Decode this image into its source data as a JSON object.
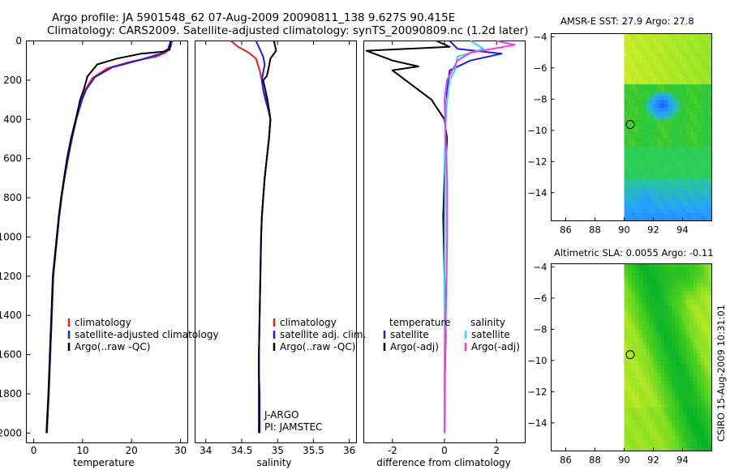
{
  "figure": {
    "title_line1": "Argo profile: JA 5901548_62 07-Aug-2009 20090811_138 9.627S 90.415E",
    "title_line2": "Climatology: CARS2009. Satellite-adjusted climatology: synTS_20090809.nc (1.2d later)",
    "side_label": "CSIRO 15-Aug-2009 10:31:01"
  },
  "colors": {
    "climatology": "#ff1a1a",
    "satellite": "#1a1aff",
    "argo": "#000000",
    "salinity_satellite": "#22e0ee",
    "salinity_argo": "#ff33ee"
  },
  "chart_data": [
    {
      "type": "line",
      "id": "temperature",
      "xlabel": "temperature",
      "xlim": [
        -1.5,
        31.5
      ],
      "ylim": [
        2050,
        0
      ],
      "y_inverted": true,
      "xticks": [
        0,
        10,
        20,
        30
      ],
      "yticks": [
        0,
        200,
        400,
        600,
        800,
        1000,
        1200,
        1400,
        1600,
        1800,
        2000
      ],
      "legend": [
        "climatology",
        "satellite-adjusted climatology",
        "Argo(..raw -QC)"
      ],
      "series": [
        {
          "name": "climatology",
          "color": "#ff1a1a",
          "x": [
            28.3,
            28.0,
            27.0,
            25.0,
            20.0,
            15.0,
            12.0,
            10.5,
            9.8,
            8.7,
            7.8,
            7.0,
            6.3,
            5.7,
            5.2,
            4.8,
            4.4,
            4.0,
            3.7,
            3.4,
            3.1,
            2.9,
            2.7
          ],
          "y": [
            0,
            30,
            60,
            80,
            105,
            140,
            190,
            250,
            300,
            400,
            500,
            600,
            700,
            800,
            900,
            1000,
            1100,
            1200,
            1400,
            1600,
            1800,
            1900,
            2000
          ]
        },
        {
          "name": "satellite-adjusted climatology",
          "color": "#1a1aff",
          "x": [
            28.0,
            27.5,
            26.0,
            22.0,
            16.0,
            12.5,
            10.8,
            9.9,
            8.7,
            7.8,
            7.0,
            6.3,
            5.7,
            5.2,
            4.8,
            4.4,
            4.0,
            3.7,
            3.4,
            3.1,
            2.9,
            2.7
          ],
          "y": [
            0,
            40,
            65,
            95,
            135,
            185,
            245,
            300,
            400,
            500,
            600,
            700,
            800,
            900,
            1000,
            1100,
            1200,
            1400,
            1600,
            1800,
            1900,
            2000
          ]
        },
        {
          "name": "Argo(..raw -QC)",
          "color": "#000000",
          "x": [
            28.0,
            27.8,
            26.5,
            22.0,
            17.0,
            13.0,
            11.0,
            10.2,
            9.5,
            8.6,
            7.6,
            6.8,
            6.2,
            5.6,
            5.1,
            4.7,
            4.3,
            3.9,
            3.6,
            3.3,
            3.0,
            2.8,
            2.6
          ],
          "y": [
            0,
            45,
            55,
            65,
            90,
            120,
            180,
            250,
            300,
            400,
            500,
            600,
            700,
            800,
            900,
            1000,
            1100,
            1200,
            1400,
            1600,
            1800,
            1900,
            2000
          ]
        }
      ]
    },
    {
      "type": "line",
      "id": "salinity",
      "xlabel": "salinity",
      "xlim": [
        33.85,
        36.1
      ],
      "ylim": [
        2050,
        0
      ],
      "y_inverted": true,
      "xticks": [
        34,
        34.5,
        35,
        35.5,
        36
      ],
      "legend": [
        "climatology",
        "satellite adj. clim.",
        "Argo(..raw -QC)"
      ],
      "annotation": [
        "J-ARGO",
        "PI: JAMSTEC"
      ],
      "series": [
        {
          "name": "climatology",
          "color": "#ff1a1a",
          "x": [
            34.35,
            34.45,
            34.6,
            34.7,
            34.75,
            34.78,
            34.8,
            34.85,
            34.88,
            34.9,
            34.88,
            34.85,
            34.82,
            34.8,
            34.78,
            34.77,
            34.76,
            34.75,
            34.74,
            34.74,
            34.75,
            34.75,
            34.75
          ],
          "y": [
            0,
            30,
            60,
            90,
            150,
            200,
            250,
            300,
            350,
            400,
            500,
            600,
            700,
            800,
            900,
            1000,
            1200,
            1400,
            1600,
            1700,
            1800,
            1900,
            2000
          ]
        },
        {
          "name": "satellite adj. clim.",
          "color": "#1a1aff",
          "x": [
            34.7,
            34.75,
            34.8,
            34.82,
            34.8,
            34.78,
            34.8,
            34.83,
            34.87,
            34.9,
            34.88,
            34.85,
            34.82,
            34.8,
            34.78,
            34.77,
            34.76,
            34.75,
            34.74,
            34.74,
            34.75,
            34.75,
            34.75
          ],
          "y": [
            0,
            40,
            80,
            120,
            160,
            200,
            250,
            300,
            350,
            400,
            500,
            600,
            700,
            800,
            900,
            1000,
            1200,
            1400,
            1600,
            1700,
            1800,
            1900,
            2000
          ]
        },
        {
          "name": "Argo(..raw -QC)",
          "color": "#000000",
          "x": [
            34.95,
            34.98,
            34.9,
            34.88,
            34.85,
            34.8,
            34.83,
            34.86,
            34.88,
            34.9,
            34.88,
            34.85,
            34.82,
            34.8,
            34.78,
            34.77,
            34.76,
            34.75,
            34.74,
            34.74,
            34.74
          ],
          "y": [
            0,
            50,
            90,
            130,
            180,
            200,
            250,
            300,
            350,
            400,
            500,
            600,
            700,
            800,
            900,
            1000,
            1200,
            1400,
            1600,
            1800,
            2000
          ]
        }
      ]
    },
    {
      "type": "line",
      "id": "difference",
      "xlabel": "difference from climatology",
      "xlim": [
        -3.1,
        3.1
      ],
      "ylim": [
        2050,
        0
      ],
      "y_inverted": true,
      "xticks": [
        -2,
        0,
        2
      ],
      "legend_headers": [
        "temperature",
        "salinity"
      ],
      "legend": [
        "satellite",
        "Argo(-adj)",
        "satellite",
        "Argo(-adj)"
      ],
      "series": [
        {
          "name": "temperature satellite",
          "color": "#1a1aff",
          "x": [
            0.2,
            0.5,
            2.2,
            1.0,
            0.2,
            0.1,
            0.05,
            0.02,
            0.0,
            0.0,
            0.0,
            0.0,
            0.0,
            0.0
          ],
          "y": [
            0,
            40,
            65,
            100,
            150,
            250,
            400,
            600,
            800,
            1000,
            1200,
            1500,
            1800,
            2000
          ]
        },
        {
          "name": "temperature Argo(-adj)",
          "color": "#000000",
          "x": [
            -0.3,
            0.2,
            -3.0,
            -2.0,
            -1.0,
            -2.0,
            -1.5,
            -0.5,
            0.0,
            0.1,
            0.0,
            -0.05,
            0.0,
            0.05,
            0.0,
            0.0
          ],
          "y": [
            0,
            30,
            50,
            100,
            130,
            150,
            200,
            300,
            400,
            500,
            700,
            900,
            1200,
            1500,
            1800,
            2000
          ]
        },
        {
          "name": "salinity satellite",
          "color": "#22e0ee",
          "x": [
            1.0,
            1.5,
            0.5,
            0.4,
            0.2,
            0.1,
            0.05,
            0.03,
            0.02,
            0.01,
            0.0,
            0.0,
            0.0
          ],
          "y": [
            0,
            40,
            80,
            150,
            200,
            300,
            400,
            600,
            800,
            1000,
            1400,
            1800,
            2000
          ]
        },
        {
          "name": "salinity Argo(-adj)",
          "color": "#ff33ee",
          "x": [
            2.0,
            2.7,
            1.0,
            0.5,
            0.3,
            0.1,
            0.0,
            0.05,
            0.1,
            0.1,
            0.1,
            0.08,
            0.05,
            0.02,
            0.01
          ],
          "y": [
            0,
            20,
            60,
            100,
            150,
            200,
            300,
            500,
            700,
            900,
            1000,
            1200,
            1400,
            1700,
            2000
          ]
        }
      ]
    },
    {
      "type": "heatmap",
      "id": "sst",
      "title": "AMSR-E SST: 27.9 Argo: 27.8",
      "xlim": [
        85,
        96
      ],
      "ylim": [
        -15.8,
        -3.8
      ],
      "xticks": [
        86,
        88,
        90,
        92,
        94
      ],
      "yticks": [
        -4,
        -6,
        -8,
        -10,
        -12,
        -14
      ],
      "data_lon_range": [
        90,
        96
      ],
      "marker": {
        "lon": 90.415,
        "lat": -9.627
      }
    },
    {
      "type": "heatmap",
      "id": "sla",
      "title": "Altimetric SLA: 0.0055 Argo: -0.11",
      "xlim": [
        85,
        96
      ],
      "ylim": [
        -15.8,
        -3.8
      ],
      "xticks": [
        86,
        88,
        90,
        92,
        94
      ],
      "yticks": [
        -4,
        -6,
        -8,
        -10,
        -12,
        -14
      ],
      "data_lon_range": [
        90,
        96
      ],
      "marker": {
        "lon": 90.415,
        "lat": -9.627
      }
    }
  ]
}
